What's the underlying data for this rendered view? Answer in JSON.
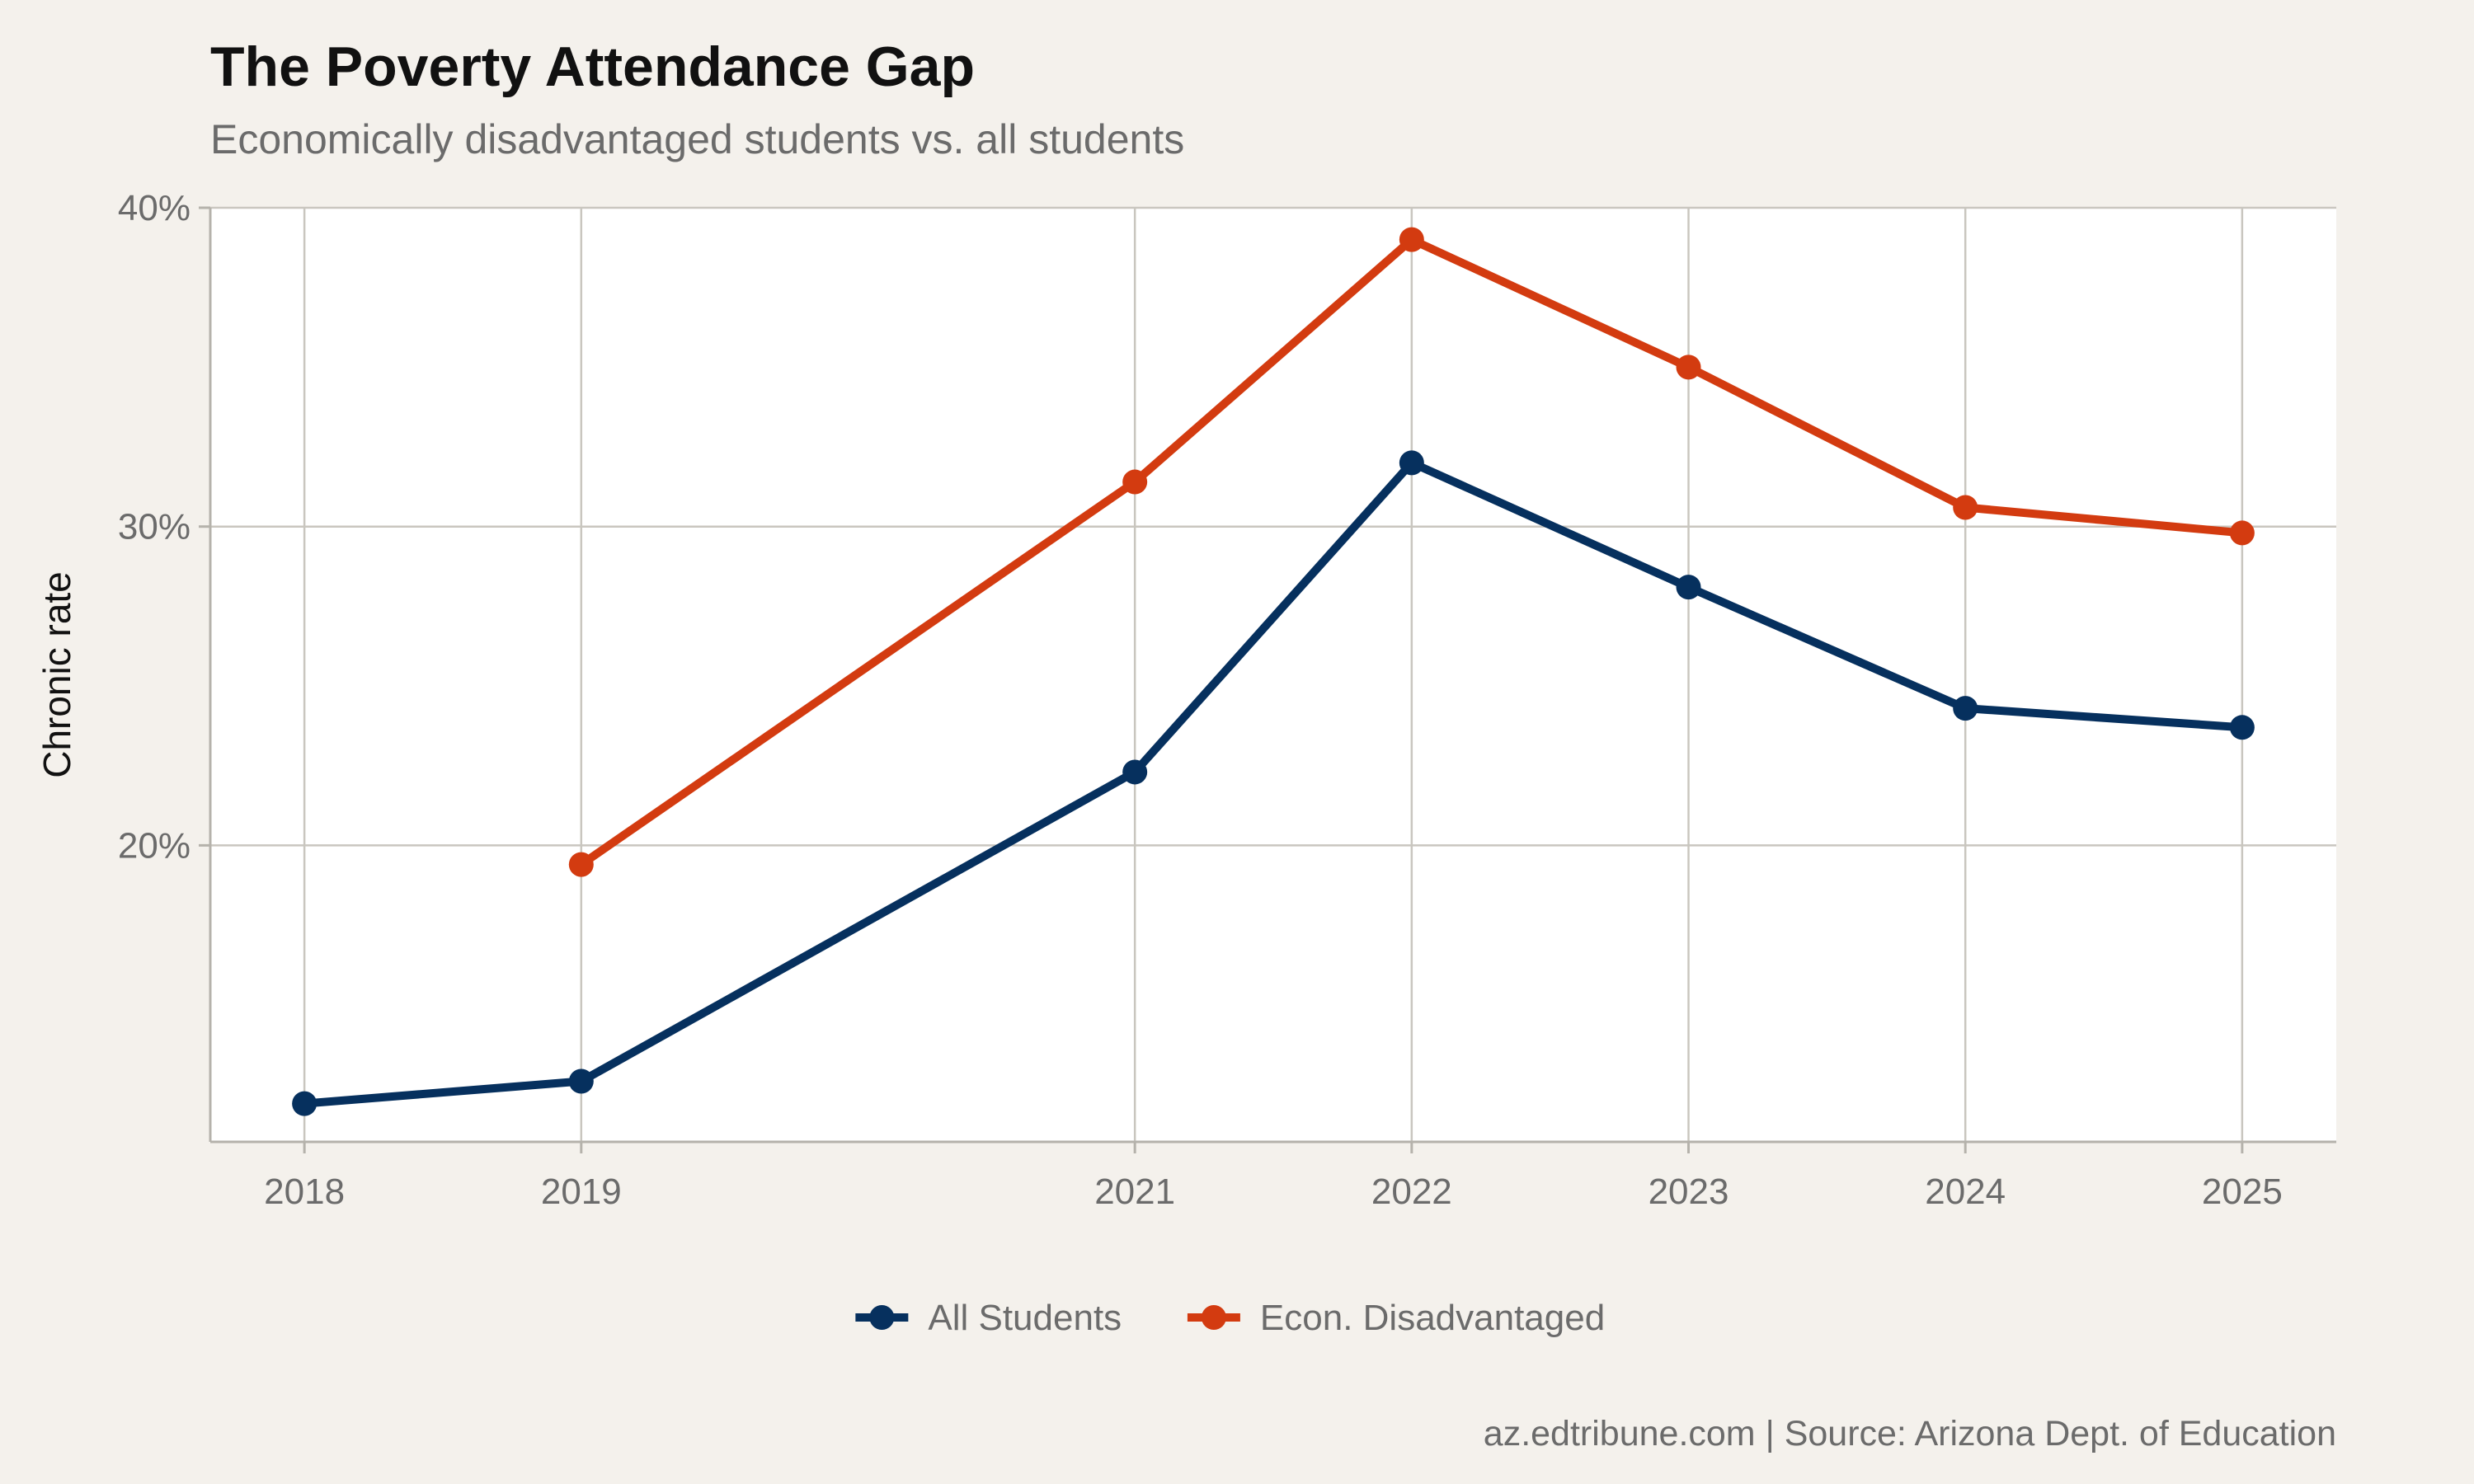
{
  "title": "The Poverty Attendance Gap",
  "subtitle": "Economically disadvantaged students vs. all students",
  "caption": "az.edtribune.com | Source: Arizona Dept. of Education",
  "chart_data": {
    "type": "line",
    "title": "The Poverty Attendance Gap",
    "subtitle": "Economically disadvantaged students vs. all students",
    "xlabel": "",
    "ylabel": "Chronic rate",
    "x": [
      2018,
      2019,
      2021,
      2022,
      2023,
      2024,
      2025
    ],
    "x_ticks": [
      "2018",
      "2019",
      "2021",
      "2022",
      "2023",
      "2024",
      "2025"
    ],
    "xlim": [
      2017.66,
      2025.34
    ],
    "ylim": [
      10.7,
      40
    ],
    "y_ticks": [
      20,
      30,
      40
    ],
    "y_tick_labels": [
      "20%",
      "30%",
      "40%"
    ],
    "grid": true,
    "legend_position": "bottom",
    "series": [
      {
        "name": "All Students",
        "color": "#06305e",
        "values": [
          11.9,
          12.6,
          22.3,
          32.0,
          28.1,
          24.3,
          23.7
        ]
      },
      {
        "name": "Econ. Disadvantaged",
        "color": "#d33b10",
        "values": [
          null,
          19.4,
          31.4,
          39.0,
          35.0,
          30.6,
          29.8
        ]
      }
    ]
  }
}
